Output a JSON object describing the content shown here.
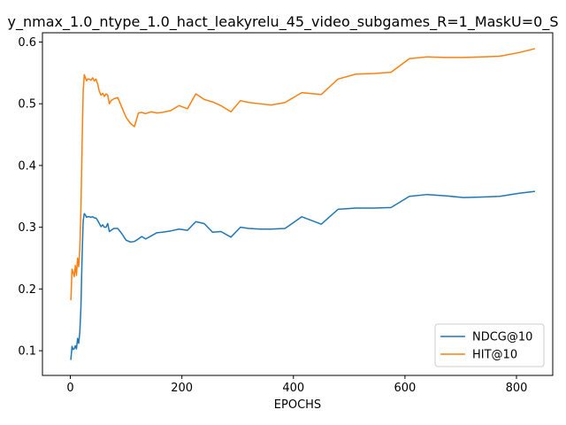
{
  "chart_data": {
    "type": "line",
    "title": "y_nmax_1.0_ntype_1.0_hact_leakyrelu_45_video_subgames_R=1_MaskU=0_S",
    "xlabel": "EPOCHS",
    "ylabel": "",
    "xlim": [
      -50,
      865
    ],
    "ylim": [
      0.06,
      0.615
    ],
    "xticks": [
      0,
      200,
      400,
      600,
      800
    ],
    "yticks": [
      0.1,
      0.2,
      0.3,
      0.4,
      0.5,
      0.6
    ],
    "xtick_labels": [
      "0",
      "200",
      "400",
      "600",
      "800"
    ],
    "ytick_labels": [
      "0.1",
      "0.2",
      "0.3",
      "0.4",
      "0.5",
      "0.6"
    ],
    "grid": false,
    "legend_position": "lower-right",
    "series": [
      {
        "name": "NDCG@10",
        "color": "#1f77b4",
        "x": [
          1,
          3,
          5,
          7,
          9,
          11,
          13,
          15,
          17,
          19,
          21,
          23,
          25,
          27,
          29,
          31,
          34,
          37,
          40,
          43,
          46,
          49,
          52,
          55,
          58,
          61,
          64,
          67,
          70,
          73,
          78,
          85,
          92,
          100,
          108,
          115,
          122,
          128,
          135,
          145,
          155,
          165,
          180,
          195,
          210,
          225,
          240,
          255,
          270,
          288,
          305,
          320,
          340,
          360,
          385,
          415,
          450,
          480,
          512,
          545,
          575,
          608,
          640,
          672,
          705,
          740,
          770,
          805,
          832
        ],
        "y": [
          0.086,
          0.107,
          0.102,
          0.103,
          0.108,
          0.103,
          0.12,
          0.112,
          0.13,
          0.17,
          0.25,
          0.31,
          0.322,
          0.32,
          0.316,
          0.317,
          0.317,
          0.316,
          0.317,
          0.315,
          0.315,
          0.311,
          0.306,
          0.301,
          0.304,
          0.3,
          0.3,
          0.306,
          0.293,
          0.295,
          0.298,
          0.298,
          0.29,
          0.279,
          0.276,
          0.277,
          0.281,
          0.285,
          0.281,
          0.286,
          0.291,
          0.292,
          0.294,
          0.297,
          0.295,
          0.309,
          0.306,
          0.292,
          0.293,
          0.284,
          0.3,
          0.298,
          0.297,
          0.297,
          0.298,
          0.317,
          0.305,
          0.329,
          0.331,
          0.331,
          0.332,
          0.35,
          0.353,
          0.351,
          0.348,
          0.349,
          0.35,
          0.355,
          0.358
        ]
      },
      {
        "name": "HIT@10",
        "color": "#ff7f0e",
        "x": [
          1,
          3,
          5,
          7,
          9,
          11,
          13,
          15,
          17,
          19,
          21,
          23,
          25,
          27,
          29,
          31,
          34,
          37,
          40,
          43,
          46,
          49,
          52,
          55,
          58,
          61,
          64,
          67,
          70,
          73,
          78,
          85,
          92,
          100,
          108,
          115,
          122,
          128,
          135,
          145,
          155,
          165,
          180,
          195,
          210,
          225,
          240,
          255,
          270,
          288,
          305,
          320,
          340,
          360,
          385,
          415,
          450,
          480,
          512,
          545,
          575,
          608,
          640,
          672,
          705,
          740,
          770,
          805,
          832
        ],
        "y": [
          0.183,
          0.232,
          0.227,
          0.22,
          0.238,
          0.222,
          0.25,
          0.236,
          0.265,
          0.33,
          0.43,
          0.52,
          0.547,
          0.542,
          0.537,
          0.54,
          0.54,
          0.538,
          0.542,
          0.537,
          0.54,
          0.532,
          0.52,
          0.514,
          0.517,
          0.512,
          0.516,
          0.514,
          0.5,
          0.505,
          0.508,
          0.51,
          0.495,
          0.478,
          0.468,
          0.463,
          0.485,
          0.486,
          0.484,
          0.487,
          0.485,
          0.486,
          0.489,
          0.497,
          0.492,
          0.516,
          0.507,
          0.503,
          0.497,
          0.487,
          0.505,
          0.502,
          0.5,
          0.498,
          0.502,
          0.518,
          0.515,
          0.54,
          0.548,
          0.549,
          0.551,
          0.573,
          0.576,
          0.575,
          0.575,
          0.576,
          0.577,
          0.583,
          0.589
        ]
      }
    ]
  }
}
